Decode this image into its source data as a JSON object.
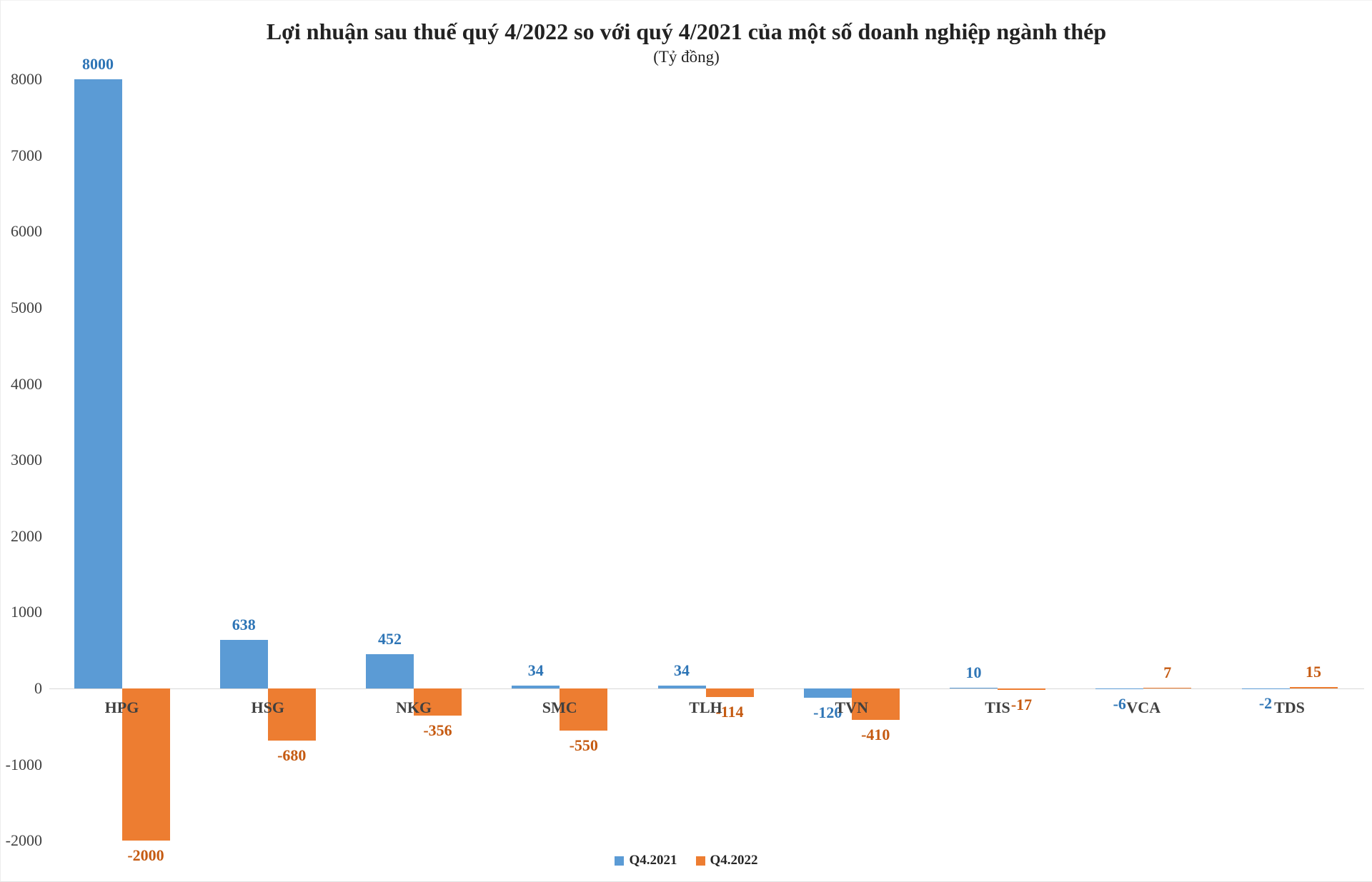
{
  "chart_data": {
    "type": "bar",
    "title": "Lợi nhuận sau thuế  quý 4/2022  so với quý 4/2021 của một số doanh nghiệp ngành thép",
    "subtitle": "(Tỷ đồng)",
    "categories": [
      "HPG",
      "HSG",
      "NKG",
      "SMC",
      "TLH",
      "TVN",
      "TIS",
      "VCA",
      "TDS"
    ],
    "series": [
      {
        "name": "Q4.2021",
        "color": "#5B9BD5",
        "label_color": "#2E75B6",
        "values": [
          8000,
          638,
          452,
          34,
          34,
          -120,
          10,
          -6,
          -2
        ]
      },
      {
        "name": "Q4.2022",
        "color": "#ED7D31",
        "label_color": "#C55A11",
        "values": [
          -2000,
          -680,
          -356,
          -550,
          -114,
          -410,
          -17,
          7,
          15
        ]
      }
    ],
    "yticks": [
      8000,
      7000,
      6000,
      5000,
      4000,
      3000,
      2000,
      1000,
      0,
      -1000,
      -2000
    ],
    "ylim": [
      -2000,
      8000
    ],
    "grid": false,
    "legend_position": "bottom",
    "axis_line_color": "#D8D8D8",
    "tick_label_color": "#404040",
    "category_label_color": "#404040",
    "title_color": "#222222"
  }
}
